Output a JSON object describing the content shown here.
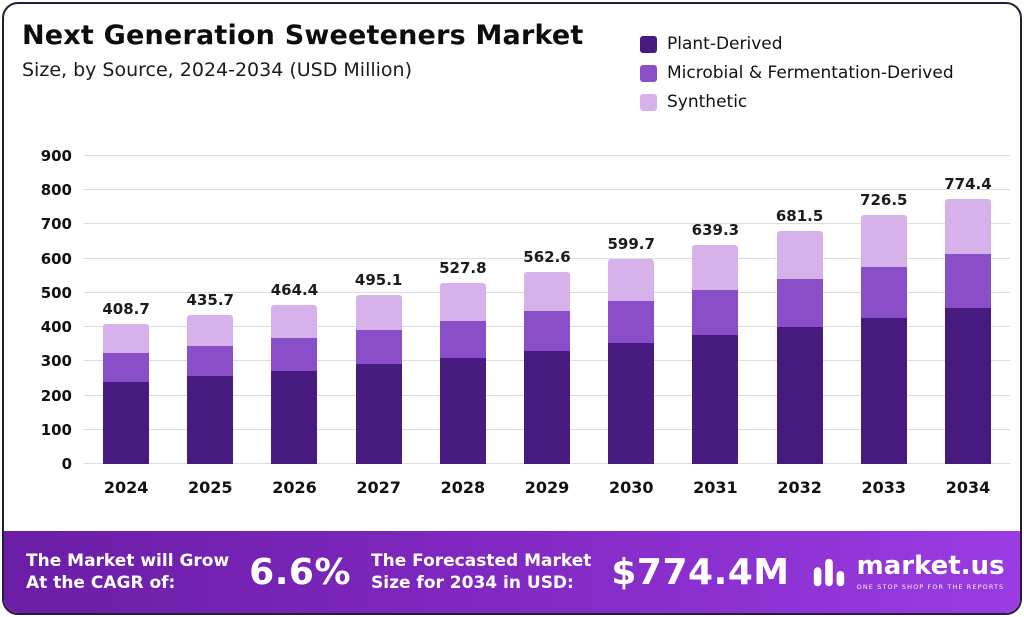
{
  "header": {
    "title": "Next Generation Sweeteners Market",
    "subtitle": "Size, by Source, 2024-2034 (USD Million)"
  },
  "chart_data": {
    "type": "bar",
    "stacked": true,
    "title": "Next Generation Sweeteners Market Size, by Source, 2024-2034 (USD Million)",
    "xlabel": "",
    "ylabel": "USD Million",
    "ylim": [
      0,
      900
    ],
    "yticks": [
      0,
      100,
      200,
      300,
      400,
      500,
      600,
      700,
      800,
      900
    ],
    "grid": true,
    "legend_position": "top-right",
    "categories": [
      "2024",
      "2025",
      "2026",
      "2027",
      "2028",
      "2029",
      "2030",
      "2031",
      "2032",
      "2033",
      "2034"
    ],
    "totals": [
      408.7,
      435.7,
      464.4,
      495.1,
      527.8,
      562.6,
      599.7,
      639.3,
      681.5,
      726.5,
      774.4
    ],
    "series": [
      {
        "name": "Plant-Derived",
        "color": "#461a7e",
        "values": [
          240,
          256,
          272,
          291,
          310,
          331,
          353,
          376,
          401,
          428,
          456
        ]
      },
      {
        "name": "Microbial & Fermentation-Derived",
        "color": "#8a4fc8",
        "values": [
          84,
          90,
          96,
          102,
          109,
          116,
          124,
          132,
          140,
          149,
          158
        ]
      },
      {
        "name": "Synthetic",
        "color": "#d7b1ea",
        "values": [
          84.7,
          89.7,
          96.4,
          102.1,
          108.8,
          115.6,
          122.7,
          131.3,
          140.5,
          149.5,
          160.4
        ]
      }
    ]
  },
  "footer": {
    "cagr_label_line1": "The Market will Grow",
    "cagr_label_line2": "At the CAGR of:",
    "cagr_value": "6.6%",
    "forecast_label_line1": "The Forecasted Market",
    "forecast_label_line2": "Size for 2034 in USD:",
    "forecast_value": "$774.4M",
    "brand_name": "market.us",
    "brand_tagline": "ONE STOP SHOP FOR THE REPORTS"
  }
}
